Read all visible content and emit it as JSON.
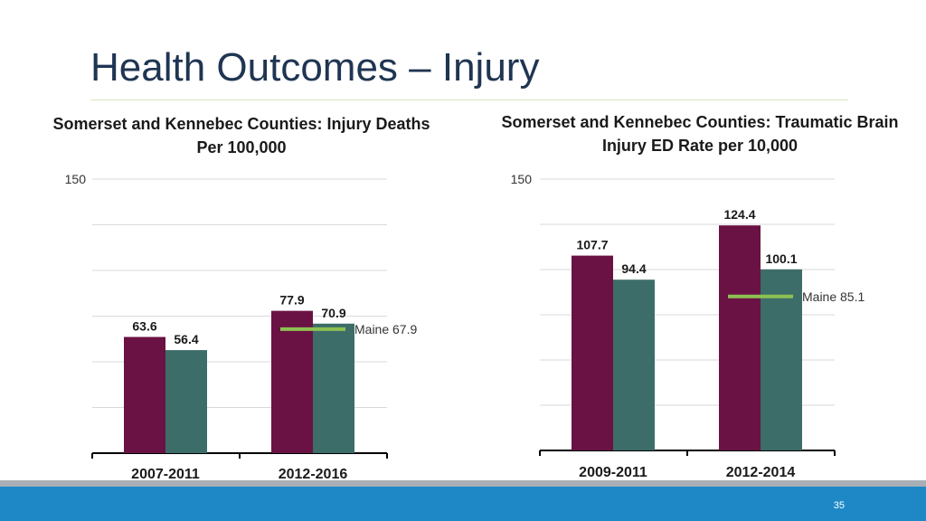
{
  "slide": {
    "title": "Health Outcomes – Injury",
    "page_number": "35"
  },
  "colors": {
    "bar_primary": "#6a1244",
    "bar_secondary": "#3d6d69",
    "reference_line": "#8cc152",
    "title": "#1f3552",
    "footer_blue": "#1e88c7",
    "footer_grey": "#a8b0b6"
  },
  "chart_data": [
    {
      "type": "bar",
      "title": "Somerset and Kennebec Counties: Injury Deaths Per 100,000",
      "categories": [
        "2007-2011",
        "2012-2016"
      ],
      "series": [
        {
          "values": [
            63.6,
            77.9
          ]
        },
        {
          "values": [
            56.4,
            70.9
          ]
        }
      ],
      "value_labels": [
        [
          "63.6",
          "77.9"
        ],
        [
          "56.4",
          "70.9"
        ]
      ],
      "ylim": [
        0,
        150
      ],
      "y_tick_labels": [
        "150"
      ],
      "grid": true,
      "reference": {
        "label": "Maine 67.9",
        "value": 67.9,
        "category": "2012-2016"
      }
    },
    {
      "type": "bar",
      "title": "Somerset and Kennebec Counties: Traumatic Brain Injury ED Rate per 10,000",
      "categories": [
        "2009-2011",
        "2012-2014"
      ],
      "series": [
        {
          "values": [
            107.7,
            124.4
          ]
        },
        {
          "values": [
            94.4,
            100.1
          ]
        }
      ],
      "value_labels": [
        [
          "107.7",
          "124.4"
        ],
        [
          "94.4",
          "100.1"
        ]
      ],
      "ylim": [
        0,
        150
      ],
      "y_tick_labels": [
        "150"
      ],
      "grid": true,
      "reference": {
        "label": "Maine 85.1",
        "value": 85.1,
        "category": "2012-2014"
      }
    }
  ]
}
